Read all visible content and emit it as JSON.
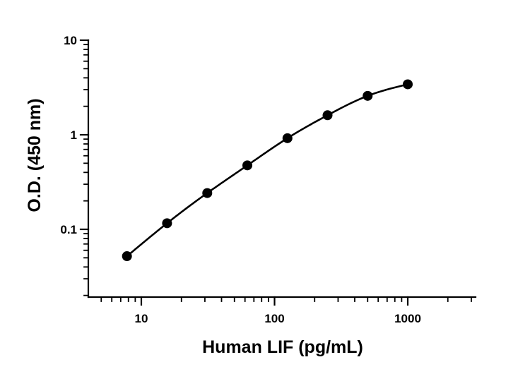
{
  "chart_data": {
    "type": "scatter",
    "title": "",
    "xlabel": "Human LIF (pg/mL)",
    "ylabel": "O.D. (450 nm)",
    "xscale": "log",
    "yscale": "log",
    "xlim": [
      4,
      3000
    ],
    "ylim": [
      0.02,
      10
    ],
    "grid": false,
    "legend": "none",
    "x_ticks": [
      {
        "value": 10,
        "label": "10"
      },
      {
        "value": 100,
        "label": "100"
      },
      {
        "value": 1000,
        "label": "1000"
      }
    ],
    "y_ticks": [
      {
        "value": 0.1,
        "label": "0.1"
      },
      {
        "value": 1,
        "label": "1"
      },
      {
        "value": 10,
        "label": "10"
      }
    ],
    "series": [
      {
        "x": [
          7.8,
          15.6,
          31.25,
          62.5,
          125,
          250,
          500,
          1000
        ],
        "y": [
          0.052,
          0.116,
          0.242,
          0.475,
          0.92,
          1.61,
          2.58,
          3.42
        ],
        "marker": "circle",
        "line": "smooth-fit",
        "color": "#000000"
      }
    ]
  }
}
